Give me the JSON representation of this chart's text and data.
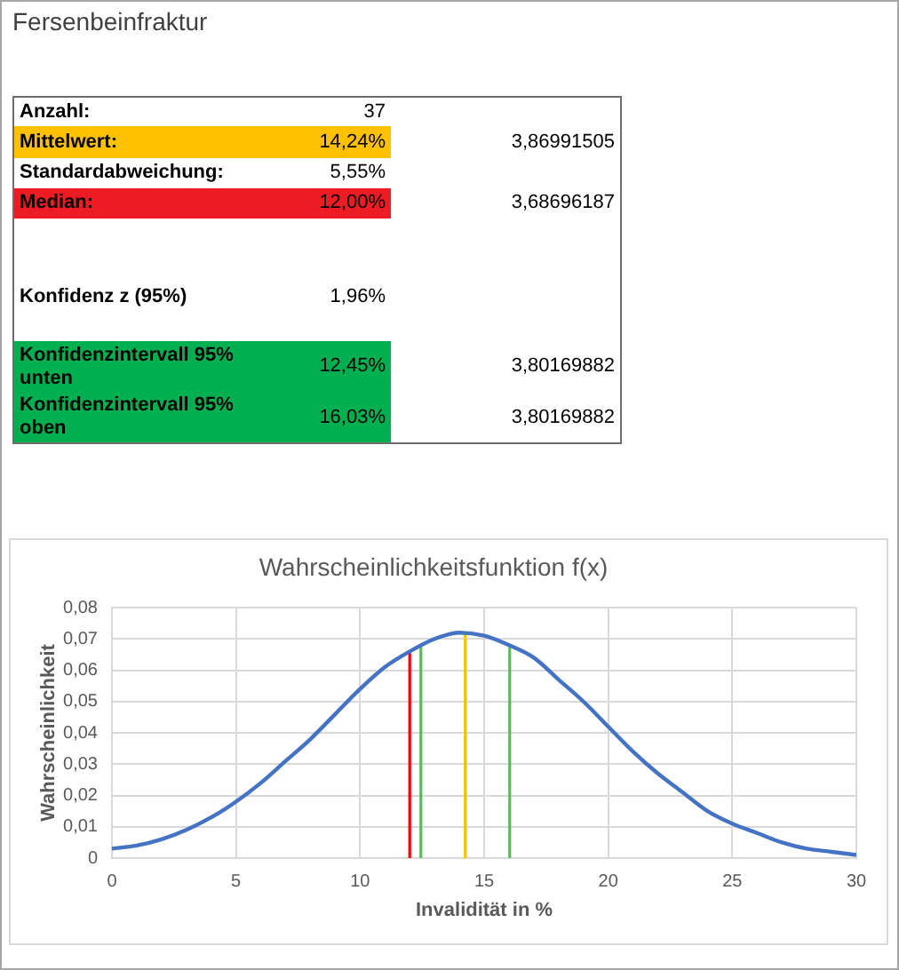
{
  "chart_data": [
    {
      "type": "other",
      "title": "Fersenbeinfraktur",
      "annotations": [
        "Anzahl:",
        "37",
        "Mittelwert:",
        "14,24%",
        "3,86991505",
        "Standardabweichung:",
        "5,55%",
        "Median:",
        "12,00%",
        "3,68696187",
        "Konfidenz z (95%)",
        "1,96%",
        "Konfidenzintervall 95% unten",
        "12,45%",
        "3,80169882",
        "Konfidenzintervall 95% oben",
        "16,03%",
        "3,80169882"
      ]
    },
    {
      "type": "line",
      "title": "Wahrscheinlichkeitsfunktion f(x)",
      "xlabel": "Invalidität in %",
      "ylabel": "Wahrscheinlichkeit",
      "xlim": [
        0,
        30
      ],
      "ylim": [
        0,
        0.08
      ],
      "xticks": [
        0,
        5,
        10,
        15,
        20,
        25,
        30
      ],
      "yticks": [
        0,
        {
          "value": 0.01,
          "label": "0,01"
        },
        {
          "value": 0.02,
          "label": "0,02"
        },
        {
          "value": 0.03,
          "label": "0,03"
        },
        {
          "value": 0.04,
          "label": "0,04"
        },
        {
          "value": 0.05,
          "label": "0,05"
        },
        {
          "value": 0.06,
          "label": "0,06"
        },
        {
          "value": 0.07,
          "label": "0,07"
        },
        {
          "value": 0.08,
          "label": "0,08"
        }
      ],
      "grid": true,
      "series": [
        {
          "color": "#4472c4",
          "x": [
            0,
            1,
            2,
            3,
            4,
            5,
            6,
            7,
            8,
            9,
            10,
            11,
            12,
            13,
            14,
            15,
            16,
            17,
            18,
            19,
            20,
            21,
            22,
            23,
            24,
            25,
            26,
            27,
            28,
            29,
            30
          ],
          "values": [
            0.003,
            0.004,
            0.006,
            0.009,
            0.013,
            0.018,
            0.024,
            0.031,
            0.038,
            0.046,
            0.054,
            0.061,
            0.066,
            0.07,
            0.072,
            0.071,
            0.068,
            0.064,
            0.057,
            0.05,
            0.042,
            0.034,
            0.027,
            0.021,
            0.015,
            0.011,
            0.008,
            0.005,
            0.003,
            0.002,
            0.001
          ]
        },
        {
          "color": "#ff0000",
          "x": [
            12,
            12
          ],
          "values": [
            0,
            0.066
          ]
        },
        {
          "color": "#5cb85c",
          "x": [
            12.45,
            12.45
          ],
          "values": [
            0,
            0.068
          ]
        },
        {
          "color": "#ffc000",
          "x": [
            14.24,
            14.24
          ],
          "values": [
            0,
            0.072
          ]
        },
        {
          "color": "#5cb85c",
          "x": [
            16.03,
            16.03
          ],
          "values": [
            0,
            0.068
          ]
        }
      ]
    }
  ]
}
